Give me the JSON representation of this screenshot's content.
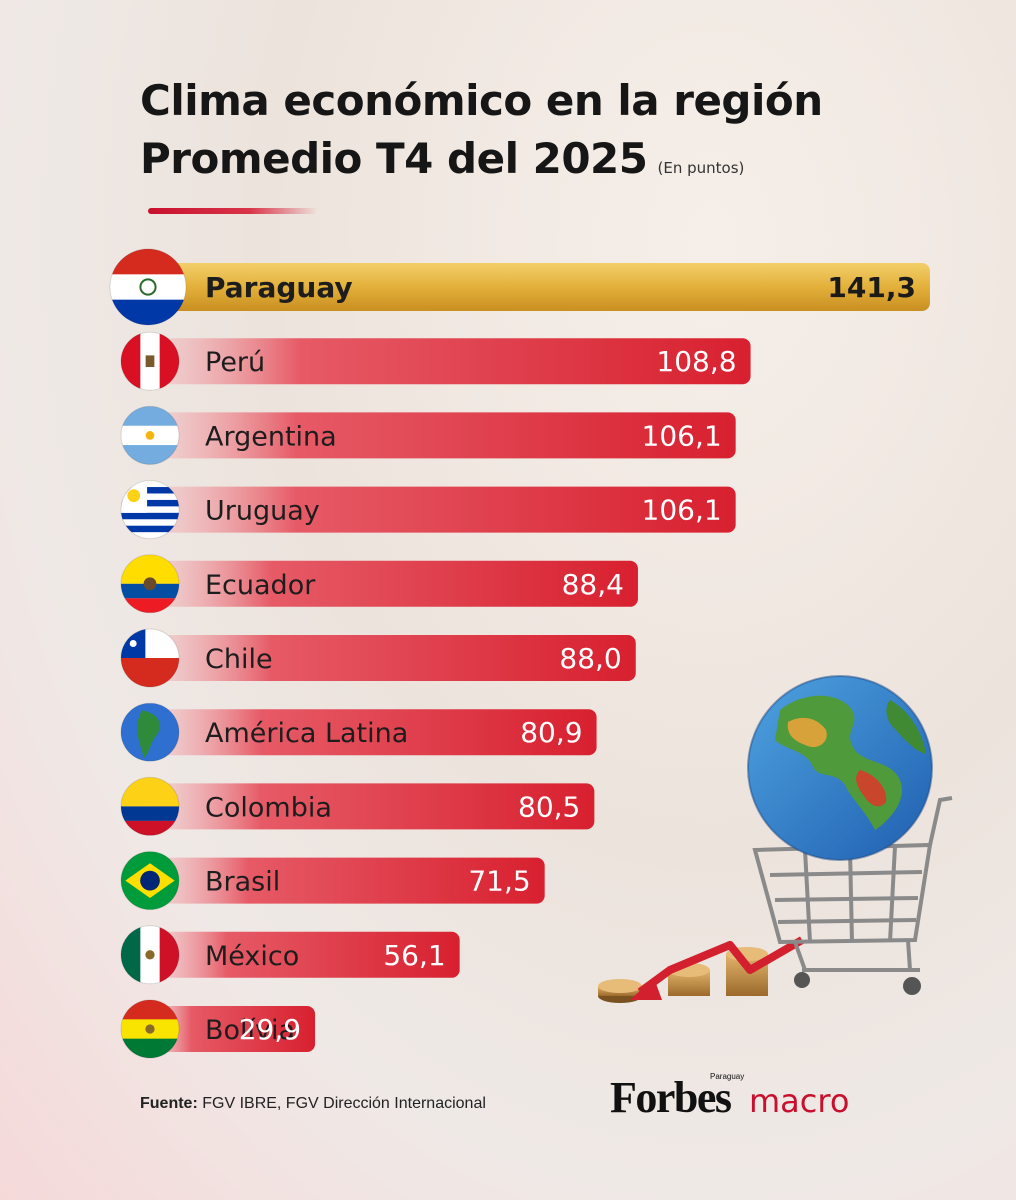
{
  "header": {
    "title_line1": "Clima económico en la región",
    "title_line2": "Promedio T4 del 2025",
    "unit_note": "(En puntos)"
  },
  "chart_data": {
    "type": "bar",
    "orientation": "horizontal",
    "title": "Clima económico en la región Promedio T4 del 2025",
    "unit": "(En puntos)",
    "categories": [
      "Paraguay",
      "Perú",
      "Argentina",
      "Uruguay",
      "Ecuador",
      "Chile",
      "América Latina",
      "Colombia",
      "Brasil",
      "México",
      "Bolívia"
    ],
    "values": [
      141.3,
      108.8,
      106.1,
      106.1,
      88.4,
      88.0,
      80.9,
      80.5,
      71.5,
      56.1,
      29.9
    ],
    "value_labels": [
      "141,3",
      "108,8",
      "106,1",
      "106,1",
      "88,4",
      "88,0",
      "80,9",
      "80,5",
      "71,5",
      "56,1",
      "29,9"
    ],
    "highlight": "Paraguay",
    "colors": {
      "highlight": "#e8b53a",
      "bars": "#dc2f3f"
    },
    "flag_icons": [
      "paraguay-flag-icon",
      "peru-flag-icon",
      "argentina-flag-icon",
      "uruguay-flag-icon",
      "ecuador-flag-icon",
      "chile-flag-icon",
      "latin-america-globe-icon",
      "colombia-flag-icon",
      "brazil-flag-icon",
      "mexico-flag-icon",
      "bolivia-flag-icon"
    ],
    "legend": "none",
    "grid": false
  },
  "footer": {
    "source_label": "Fuente:",
    "source_text": "FGV IBRE, FGV Dirección Internacional",
    "brand_name": "Forbes",
    "brand_country": "Paraguay",
    "brand_section": "macro"
  },
  "illustration": {
    "icon": "globe-in-shopping-cart-with-coins-and-falling-arrow"
  }
}
